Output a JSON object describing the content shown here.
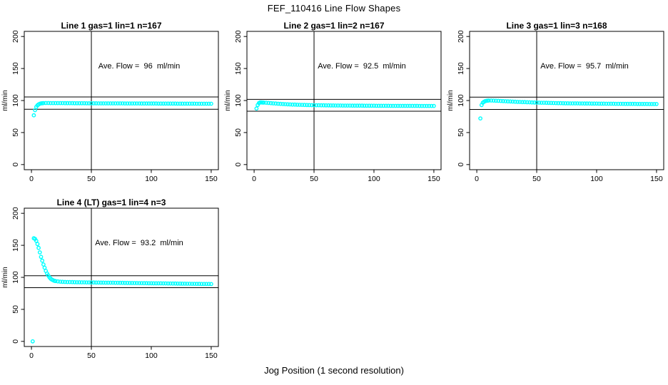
{
  "figure": {
    "title": "FEF_110416  Line Flow Shapes",
    "xlabel": "Jog Position (1 second resolution)",
    "background_color": "#ffffff",
    "axis_color": "#000000",
    "point_color": "#00ffff"
  },
  "chart_data": [
    {
      "type": "scatter",
      "title": "Line 1 gas=1 lin=1 n=167",
      "annotation": "Ave. Flow =  96  ml/min",
      "ylabel": "ml/min",
      "xlim": [
        0,
        150
      ],
      "ylim": [
        0,
        200
      ],
      "xticks": [
        0,
        50,
        100,
        150
      ],
      "yticks": [
        0,
        50,
        100,
        150,
        200
      ],
      "ref_h": [
        105.6,
        86.4
      ],
      "ref_v": [
        50
      ],
      "marker": "open-circle",
      "points": [
        [
          2,
          77
        ],
        [
          3,
          85
        ],
        [
          4,
          90
        ],
        [
          5,
          92.5
        ],
        [
          6,
          94
        ],
        [
          7,
          95
        ],
        [
          8,
          95.5
        ],
        [
          9,
          95.8
        ],
        [
          10,
          96
        ],
        [
          12,
          96.1
        ],
        [
          14,
          96.1
        ],
        [
          16,
          96
        ],
        [
          18,
          96
        ],
        [
          20,
          96
        ],
        [
          22,
          96
        ],
        [
          24,
          96
        ],
        [
          26,
          96
        ],
        [
          28,
          95.9
        ],
        [
          30,
          95.9
        ],
        [
          32,
          95.9
        ],
        [
          34,
          95.9
        ],
        [
          36,
          95.8
        ],
        [
          38,
          95.8
        ],
        [
          40,
          95.8
        ],
        [
          42,
          95.8
        ],
        [
          44,
          95.8
        ],
        [
          46,
          95.7
        ],
        [
          48,
          95.7
        ],
        [
          50,
          95.7
        ],
        [
          52,
          95.7
        ],
        [
          54,
          95.7
        ],
        [
          56,
          95.6
        ],
        [
          58,
          95.6
        ],
        [
          60,
          95.6
        ],
        [
          62,
          95.6
        ],
        [
          64,
          95.6
        ],
        [
          66,
          95.5
        ],
        [
          68,
          95.5
        ],
        [
          70,
          95.5
        ],
        [
          72,
          95.5
        ],
        [
          74,
          95.5
        ],
        [
          76,
          95.5
        ],
        [
          78,
          95.4
        ],
        [
          80,
          95.4
        ],
        [
          82,
          95.4
        ],
        [
          84,
          95.4
        ],
        [
          86,
          95.4
        ],
        [
          88,
          95.4
        ],
        [
          90,
          95.4
        ],
        [
          92,
          95.3
        ],
        [
          94,
          95.3
        ],
        [
          96,
          95.3
        ],
        [
          98,
          95.3
        ],
        [
          100,
          95.3
        ],
        [
          102,
          95.3
        ],
        [
          104,
          95.3
        ],
        [
          106,
          95.2
        ],
        [
          108,
          95.2
        ],
        [
          110,
          95.2
        ],
        [
          112,
          95.2
        ],
        [
          114,
          95.2
        ],
        [
          116,
          95.2
        ],
        [
          118,
          95.2
        ],
        [
          120,
          95.2
        ],
        [
          122,
          95.1
        ],
        [
          124,
          95.1
        ],
        [
          126,
          95.1
        ],
        [
          128,
          95.1
        ],
        [
          130,
          95.1
        ],
        [
          132,
          95.1
        ],
        [
          134,
          95.1
        ],
        [
          136,
          95.1
        ],
        [
          138,
          95
        ],
        [
          140,
          95
        ],
        [
          142,
          95
        ],
        [
          144,
          95
        ],
        [
          146,
          95
        ],
        [
          148,
          95
        ],
        [
          150,
          95
        ]
      ]
    },
    {
      "type": "scatter",
      "title": "Line 2 gas=1 lin=2 n=167",
      "annotation": "Ave. Flow =  92.5  ml/min",
      "ylabel": "ml/min",
      "xlim": [
        0,
        150
      ],
      "ylim": [
        0,
        200
      ],
      "xticks": [
        0,
        50,
        100,
        150
      ],
      "yticks": [
        0,
        50,
        100,
        150,
        200
      ],
      "ref_h": [
        101.8,
        83.3
      ],
      "ref_v": [
        50
      ],
      "marker": "open-circle",
      "points": [
        [
          2,
          87.5
        ],
        [
          3,
          93
        ],
        [
          4,
          96
        ],
        [
          5,
          97
        ],
        [
          6,
          97
        ],
        [
          7,
          96.9
        ],
        [
          8,
          96.8
        ],
        [
          10,
          96.5
        ],
        [
          12,
          96.2
        ],
        [
          14,
          95.9
        ],
        [
          16,
          95.6
        ],
        [
          18,
          95.3
        ],
        [
          20,
          95
        ],
        [
          22,
          94.8
        ],
        [
          24,
          94.5
        ],
        [
          26,
          94.3
        ],
        [
          28,
          94.1
        ],
        [
          30,
          93.9
        ],
        [
          32,
          93.7
        ],
        [
          34,
          93.6
        ],
        [
          36,
          93.4
        ],
        [
          38,
          93.3
        ],
        [
          40,
          93.2
        ],
        [
          42,
          93.1
        ],
        [
          44,
          93
        ],
        [
          46,
          92.9
        ],
        [
          48,
          92.8
        ],
        [
          50,
          92.7
        ],
        [
          52,
          92.6
        ],
        [
          54,
          92.6
        ],
        [
          56,
          92.5
        ],
        [
          58,
          92.5
        ],
        [
          60,
          92.4
        ],
        [
          62,
          92.4
        ],
        [
          64,
          92.3
        ],
        [
          66,
          92.3
        ],
        [
          68,
          92.2
        ],
        [
          70,
          92.2
        ],
        [
          72,
          92.2
        ],
        [
          74,
          92.1
        ],
        [
          76,
          92.1
        ],
        [
          78,
          92.1
        ],
        [
          80,
          92.1
        ],
        [
          82,
          92
        ],
        [
          84,
          92
        ],
        [
          86,
          92
        ],
        [
          88,
          92
        ],
        [
          90,
          92
        ],
        [
          92,
          91.9
        ],
        [
          94,
          91.9
        ],
        [
          96,
          91.9
        ],
        [
          98,
          91.9
        ],
        [
          100,
          91.9
        ],
        [
          102,
          91.8
        ],
        [
          104,
          91.8
        ],
        [
          106,
          91.8
        ],
        [
          108,
          91.8
        ],
        [
          110,
          91.8
        ],
        [
          112,
          91.8
        ],
        [
          114,
          91.7
        ],
        [
          116,
          91.7
        ],
        [
          118,
          91.7
        ],
        [
          120,
          91.7
        ],
        [
          122,
          91.7
        ],
        [
          124,
          91.7
        ],
        [
          126,
          91.6
        ],
        [
          128,
          91.6
        ],
        [
          130,
          91.6
        ],
        [
          132,
          91.6
        ],
        [
          134,
          91.6
        ],
        [
          136,
          91.6
        ],
        [
          138,
          91.5
        ],
        [
          140,
          91.5
        ],
        [
          142,
          91.5
        ],
        [
          144,
          91.5
        ],
        [
          146,
          91.5
        ],
        [
          148,
          91.5
        ],
        [
          150,
          91.5
        ]
      ]
    },
    {
      "type": "scatter",
      "title": "Line 3 gas=1 lin=3 n=168",
      "annotation": "Ave. Flow =  95.7  ml/min",
      "ylabel": "ml/min",
      "xlim": [
        0,
        150
      ],
      "ylim": [
        0,
        200
      ],
      "xticks": [
        0,
        50,
        100,
        150
      ],
      "yticks": [
        0,
        50,
        100,
        150,
        200
      ],
      "ref_h": [
        105.3,
        86.1
      ],
      "ref_v": [
        50
      ],
      "marker": "open-circle",
      "points": [
        [
          3,
          72
        ],
        [
          4,
          93
        ],
        [
          5,
          96.5
        ],
        [
          6,
          98
        ],
        [
          7,
          99
        ],
        [
          8,
          99.5
        ],
        [
          9,
          99.8
        ],
        [
          10,
          100
        ],
        [
          12,
          100
        ],
        [
          14,
          99.9
        ],
        [
          16,
          99.7
        ],
        [
          18,
          99.5
        ],
        [
          20,
          99.3
        ],
        [
          22,
          99.1
        ],
        [
          24,
          98.9
        ],
        [
          26,
          98.7
        ],
        [
          28,
          98.5
        ],
        [
          30,
          98.3
        ],
        [
          32,
          98.1
        ],
        [
          34,
          97.9
        ],
        [
          36,
          97.8
        ],
        [
          38,
          97.6
        ],
        [
          40,
          97.5
        ],
        [
          42,
          97.3
        ],
        [
          44,
          97.2
        ],
        [
          46,
          97
        ],
        [
          48,
          96.9
        ],
        [
          50,
          96.8
        ],
        [
          52,
          96.7
        ],
        [
          54,
          96.6
        ],
        [
          56,
          96.5
        ],
        [
          58,
          96.4
        ],
        [
          60,
          96.3
        ],
        [
          62,
          96.2
        ],
        [
          64,
          96.1
        ],
        [
          66,
          96
        ],
        [
          68,
          95.9
        ],
        [
          70,
          95.9
        ],
        [
          72,
          95.8
        ],
        [
          74,
          95.7
        ],
        [
          76,
          95.7
        ],
        [
          78,
          95.6
        ],
        [
          80,
          95.6
        ],
        [
          82,
          95.5
        ],
        [
          84,
          95.5
        ],
        [
          86,
          95.4
        ],
        [
          88,
          95.4
        ],
        [
          90,
          95.3
        ],
        [
          92,
          95.3
        ],
        [
          94,
          95.3
        ],
        [
          96,
          95.2
        ],
        [
          98,
          95.2
        ],
        [
          100,
          95.2
        ],
        [
          102,
          95.1
        ],
        [
          104,
          95.1
        ],
        [
          106,
          95.1
        ],
        [
          108,
          95
        ],
        [
          110,
          95
        ],
        [
          112,
          95
        ],
        [
          114,
          95
        ],
        [
          116,
          94.9
        ],
        [
          118,
          94.9
        ],
        [
          120,
          94.9
        ],
        [
          122,
          94.9
        ],
        [
          124,
          94.8
        ],
        [
          126,
          94.8
        ],
        [
          128,
          94.8
        ],
        [
          130,
          94.8
        ],
        [
          132,
          94.8
        ],
        [
          134,
          94.7
        ],
        [
          136,
          94.7
        ],
        [
          138,
          94.7
        ],
        [
          140,
          94.7
        ],
        [
          142,
          94.7
        ],
        [
          144,
          94.6
        ],
        [
          146,
          94.6
        ],
        [
          148,
          94.6
        ],
        [
          150,
          94.6
        ]
      ]
    },
    {
      "type": "scatter",
      "title": "Line 4 (LT) gas=1 lin=4 n=3",
      "annotation": "Ave. Flow =  93.2  ml/min",
      "ylabel": "ml/min",
      "xlim": [
        0,
        150
      ],
      "ylim": [
        0,
        200
      ],
      "xticks": [
        0,
        50,
        100,
        150
      ],
      "yticks": [
        0,
        50,
        100,
        150,
        200
      ],
      "ref_h": [
        102.5,
        83.9
      ],
      "ref_v": [
        50
      ],
      "marker": "open-circle",
      "points": [
        [
          1,
          0
        ],
        [
          2,
          161
        ],
        [
          3,
          160
        ],
        [
          4,
          157
        ],
        [
          5,
          152
        ],
        [
          6,
          146
        ],
        [
          7,
          139
        ],
        [
          8,
          132
        ],
        [
          9,
          126
        ],
        [
          10,
          120
        ],
        [
          11,
          115
        ],
        [
          12,
          110
        ],
        [
          13,
          106
        ],
        [
          14,
          103
        ],
        [
          15,
          100
        ],
        [
          16,
          98
        ],
        [
          17,
          96.5
        ],
        [
          18,
          95.5
        ],
        [
          19,
          94.7
        ],
        [
          20,
          94.2
        ],
        [
          22,
          93.6
        ],
        [
          24,
          93.2
        ],
        [
          26,
          93
        ],
        [
          28,
          92.8
        ],
        [
          30,
          92.7
        ],
        [
          32,
          92.6
        ],
        [
          34,
          92.5
        ],
        [
          36,
          92.4
        ],
        [
          38,
          92.3
        ],
        [
          40,
          92.3
        ],
        [
          42,
          92.2
        ],
        [
          44,
          92.2
        ],
        [
          46,
          92.1
        ],
        [
          48,
          92.1
        ],
        [
          50,
          92
        ],
        [
          52,
          92
        ],
        [
          54,
          91.9
        ],
        [
          56,
          91.9
        ],
        [
          58,
          91.8
        ],
        [
          60,
          91.8
        ],
        [
          62,
          91.7
        ],
        [
          64,
          91.7
        ],
        [
          66,
          91.6
        ],
        [
          68,
          91.6
        ],
        [
          70,
          91.5
        ],
        [
          72,
          91.5
        ],
        [
          74,
          91.4
        ],
        [
          76,
          91.4
        ],
        [
          78,
          91.3
        ],
        [
          80,
          91.3
        ],
        [
          82,
          91.2
        ],
        [
          84,
          91.2
        ],
        [
          86,
          91.1
        ],
        [
          88,
          91.1
        ],
        [
          90,
          91
        ],
        [
          92,
          91
        ],
        [
          94,
          90.9
        ],
        [
          96,
          90.9
        ],
        [
          98,
          90.8
        ],
        [
          100,
          90.8
        ],
        [
          102,
          90.7
        ],
        [
          104,
          90.7
        ],
        [
          106,
          90.6
        ],
        [
          108,
          90.6
        ],
        [
          110,
          90.5
        ],
        [
          112,
          90.5
        ],
        [
          114,
          90.4
        ],
        [
          116,
          90.4
        ],
        [
          118,
          90.3
        ],
        [
          120,
          90.3
        ],
        [
          122,
          90.2
        ],
        [
          124,
          90.2
        ],
        [
          126,
          90.1
        ],
        [
          128,
          90.1
        ],
        [
          130,
          90
        ],
        [
          132,
          90
        ],
        [
          134,
          89.9
        ],
        [
          136,
          89.9
        ],
        [
          138,
          89.8
        ],
        [
          140,
          89.8
        ],
        [
          142,
          89.7
        ],
        [
          144,
          89.7
        ],
        [
          146,
          89.6
        ],
        [
          148,
          89.6
        ],
        [
          150,
          89.5
        ]
      ]
    }
  ]
}
